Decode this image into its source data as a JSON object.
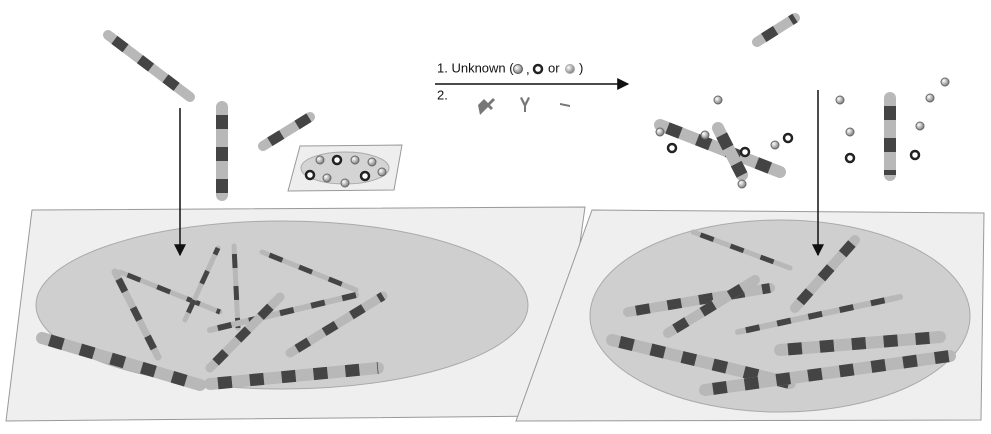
{
  "step1": {
    "prefix": "1. Unknown (",
    "separator": ",",
    "conjunction": "or",
    "suffix": ")"
  },
  "step2": {
    "label": "2."
  }
}
